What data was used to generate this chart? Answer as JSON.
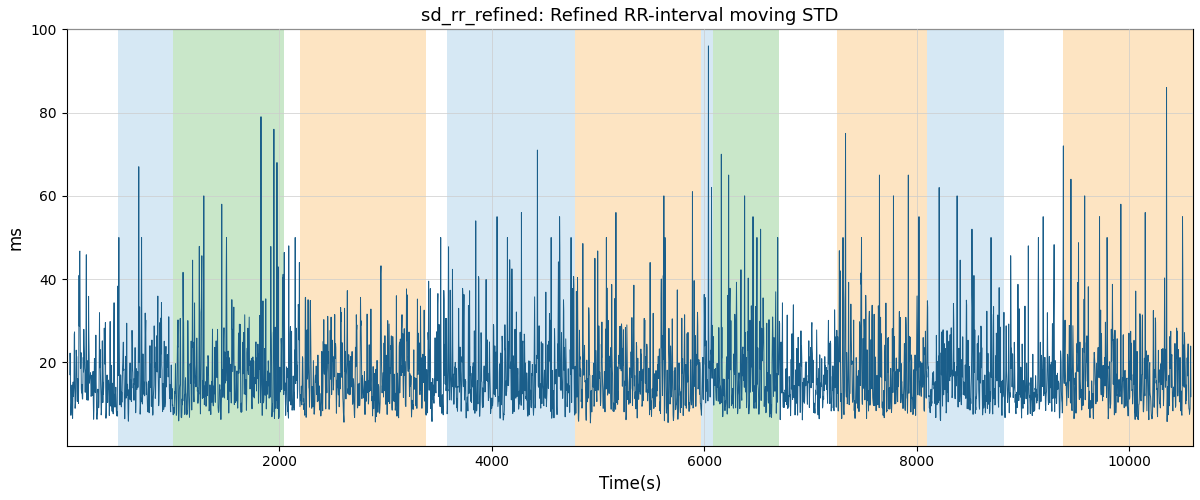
{
  "title": "sd_rr_refined: Refined RR-interval moving STD",
  "xlabel": "Time(s)",
  "ylabel": "ms",
  "ylim": [
    0,
    100
  ],
  "xlim": [
    0,
    10600
  ],
  "background_color": "#ffffff",
  "line_color": "#1a5e8a",
  "line_width": 0.7,
  "bands": [
    {
      "xmin": 480,
      "xmax": 1000,
      "color": "#c5dff0",
      "alpha": 0.7
    },
    {
      "xmin": 1000,
      "xmax": 2050,
      "color": "#b2ddb2",
      "alpha": 0.7
    },
    {
      "xmin": 2200,
      "xmax": 3380,
      "color": "#fdd9a8",
      "alpha": 0.7
    },
    {
      "xmin": 3580,
      "xmax": 4780,
      "color": "#c5dff0",
      "alpha": 0.7
    },
    {
      "xmin": 4780,
      "xmax": 5970,
      "color": "#fdd9a8",
      "alpha": 0.7
    },
    {
      "xmin": 5970,
      "xmax": 6080,
      "color": "#c5dff0",
      "alpha": 0.7
    },
    {
      "xmin": 6080,
      "xmax": 6700,
      "color": "#b2ddb2",
      "alpha": 0.7
    },
    {
      "xmin": 7250,
      "xmax": 8100,
      "color": "#fdd9a8",
      "alpha": 0.7
    },
    {
      "xmin": 8100,
      "xmax": 8820,
      "color": "#c5dff0",
      "alpha": 0.7
    },
    {
      "xmin": 9380,
      "xmax": 10600,
      "color": "#fdd9a8",
      "alpha": 0.7
    }
  ],
  "xticks": [
    2000,
    4000,
    6000,
    8000,
    10000
  ],
  "yticks": [
    20,
    40,
    60,
    80,
    100
  ],
  "figsize": [
    12.0,
    5.0
  ],
  "dpi": 100,
  "seed": 42,
  "n_points": 4000
}
